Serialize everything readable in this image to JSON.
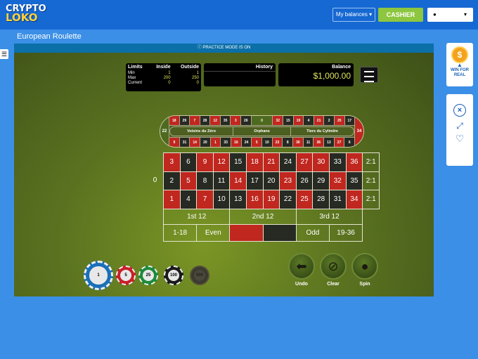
{
  "header": {
    "logo": "CRYPTO LOKO",
    "balances_label": "My balances",
    "cashier_label": "CASHIER",
    "user_chevron": "⌄"
  },
  "page_title": "European Roulette",
  "practice_banner": "PRACTICE MODE IS ON",
  "limits": {
    "title": "Limits",
    "inside": "Inside",
    "outside": "Outside",
    "rows": [
      {
        "label": "Min",
        "inside": "1",
        "outside": "1"
      },
      {
        "label": "Max",
        "inside": "200",
        "outside": "250"
      },
      {
        "label": "Current",
        "inside": "0",
        "outside": "0"
      }
    ]
  },
  "history": {
    "title": "History"
  },
  "balance": {
    "title": "Balance",
    "value": "$1,000.00"
  },
  "racetrack": {
    "top": [
      "18",
      "29",
      "7",
      "28",
      "12",
      "35",
      "3",
      "26",
      "0",
      "32",
      "15",
      "19",
      "4",
      "21",
      "2",
      "25"
    ],
    "bottom": [
      "9",
      "31",
      "14",
      "20",
      "1",
      "33",
      "16",
      "24",
      "5",
      "10",
      "23",
      "8",
      "30",
      "11",
      "36",
      "13",
      "27"
    ],
    "left_cap": "22",
    "right_cap": "34",
    "top_right": "17",
    "bottom_right": "6",
    "sections": [
      "Voisins du Zéro",
      "Orphans",
      "Tiers du Cylindre"
    ]
  },
  "table": {
    "zero": "0",
    "rows": [
      [
        "3",
        "6",
        "9",
        "12",
        "15",
        "18",
        "21",
        "24",
        "27",
        "30",
        "33",
        "36"
      ],
      [
        "2",
        "5",
        "8",
        "11",
        "14",
        "17",
        "20",
        "23",
        "26",
        "29",
        "32",
        "35"
      ],
      [
        "1",
        "4",
        "7",
        "10",
        "13",
        "16",
        "19",
        "22",
        "25",
        "28",
        "31",
        "34"
      ]
    ],
    "red_numbers": [
      "1",
      "3",
      "5",
      "7",
      "9",
      "12",
      "14",
      "16",
      "18",
      "19",
      "21",
      "23",
      "25",
      "27",
      "30",
      "32",
      "34",
      "36"
    ],
    "column_bets": [
      "2:1",
      "2:1",
      "2:1"
    ],
    "dozens": [
      "1st 12",
      "2nd 12",
      "3rd 12"
    ],
    "even_money": [
      "1-18",
      "Even",
      "",
      "",
      "Odd",
      "19-36"
    ]
  },
  "chips": [
    {
      "value": "1",
      "color": "#1a6fb8"
    },
    {
      "value": "5",
      "color": "#c8202a"
    },
    {
      "value": "25",
      "color": "#1e8a3a"
    },
    {
      "value": "100",
      "color": "#1a1a1a"
    },
    {
      "value": "500",
      "color": "#3a3a30"
    }
  ],
  "controls": [
    {
      "label": "Undo",
      "icon": "arrow-left"
    },
    {
      "label": "Clear",
      "icon": "no-sign"
    },
    {
      "label": "Spin",
      "icon": "spin"
    }
  ],
  "right_panel": {
    "win_label": "WIN FOR REAL",
    "accent": "#1b5fb8"
  }
}
